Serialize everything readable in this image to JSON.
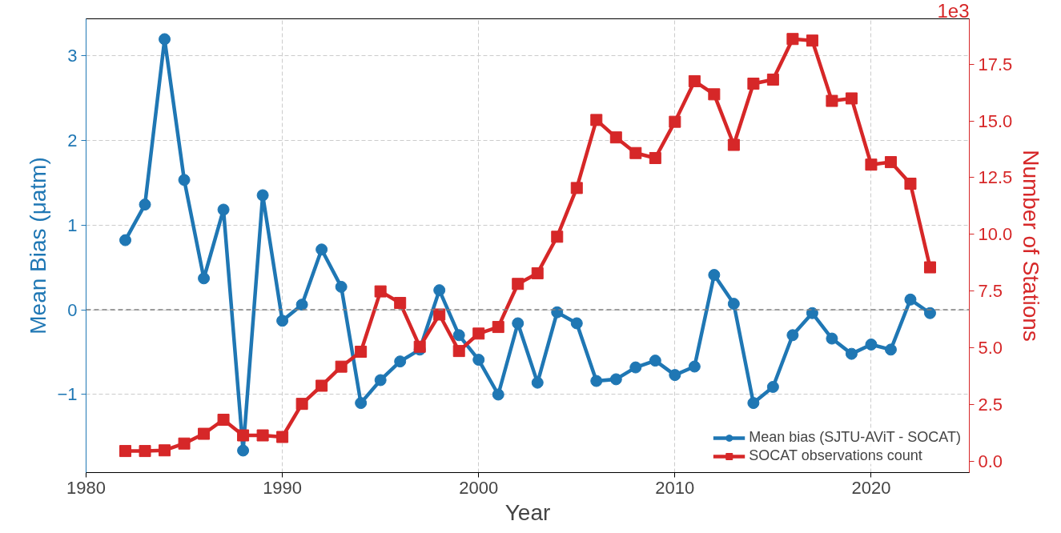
{
  "chart_data": {
    "type": "line",
    "xlabel": "Year",
    "ylabel": "Mean Bias (μatm)",
    "y2label": "Number of Stations",
    "x": [
      1982,
      1983,
      1984,
      1985,
      1986,
      1987,
      1988,
      1989,
      1990,
      1991,
      1992,
      1993,
      1994,
      1995,
      1996,
      1997,
      1998,
      1999,
      2000,
      2001,
      2002,
      2003,
      2004,
      2005,
      2006,
      2007,
      2008,
      2009,
      2010,
      2011,
      2012,
      2013,
      2014,
      2015,
      2016,
      2017,
      2018,
      2019,
      2020,
      2021,
      2022,
      2023
    ],
    "series": [
      {
        "name": "Mean bias (SJTU-AViT - SOCAT)",
        "color": "#1f77b4",
        "marker": "circle",
        "values": [
          0.82,
          1.24,
          3.19,
          1.53,
          0.37,
          1.18,
          -1.66,
          1.35,
          -0.13,
          0.06,
          0.71,
          0.27,
          -1.1,
          -0.83,
          -0.61,
          -0.47,
          0.23,
          -0.3,
          -0.59,
          -1.0,
          -0.16,
          -0.86,
          -0.03,
          -0.16,
          -0.84,
          -0.82,
          -0.68,
          -0.6,
          -0.77,
          -0.67,
          0.41,
          0.07,
          -1.1,
          -0.91,
          -0.3,
          -0.04,
          -0.34,
          -0.52,
          -0.41,
          -0.47,
          0.12,
          -0.04
        ]
      },
      {
        "name": "SOCAT observations count",
        "color": "#d62728",
        "marker": "square",
        "axis": "y2",
        "values": [
          0.44,
          0.44,
          0.47,
          0.77,
          1.2,
          1.82,
          1.13,
          1.13,
          1.06,
          2.52,
          3.32,
          4.16,
          4.82,
          7.48,
          6.97,
          5.04,
          6.46,
          4.85,
          5.62,
          5.91,
          7.81,
          8.28,
          9.89,
          12.04,
          15.04,
          14.27,
          13.58,
          13.36,
          14.96,
          16.75,
          16.17,
          13.94,
          16.64,
          16.82,
          18.61,
          18.54,
          15.88,
          15.99,
          13.07,
          13.18,
          12.23,
          8.54
        ]
      }
    ],
    "xlim": [
      1980,
      2025
    ],
    "xticks": [
      1980,
      1990,
      2000,
      2010,
      2020
    ],
    "ylim": [
      -1.92,
      3.43
    ],
    "yticks": [
      {
        "value": -1,
        "label": "−1"
      },
      0,
      1,
      2,
      3
    ],
    "y2lim": [
      -0.51,
      19.5
    ],
    "y2ticks": [
      {
        "value": 0,
        "label": "0.0"
      },
      2.5,
      {
        "value": 5,
        "label": "5.0"
      },
      7.5,
      {
        "value": 10,
        "label": "10.0"
      },
      12.5,
      {
        "value": 15,
        "label": "15.0"
      },
      17.5
    ],
    "annotations": [
      "1e3"
    ],
    "ref_lines": [
      {
        "axis": "y",
        "value": 0,
        "color": "#808080",
        "line_style": "dashed"
      }
    ],
    "grid": true,
    "legend": "bottom right",
    "line_style": "solid"
  }
}
